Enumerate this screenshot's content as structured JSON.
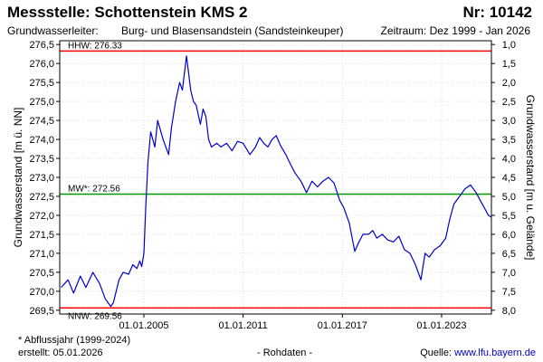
{
  "header": {
    "title": "Messstelle: Schottenstein KMS 2",
    "number": "Nr: 10142",
    "aquifer_label": "Grundwasserleiter:",
    "aquifer": "Burg- und Blasensandstein (Sandsteinkeuper)",
    "period": "Zeitraum: Dez 1999 - Jan 2026"
  },
  "footer": {
    "footnote": "* Abflussjahr (1999-2024)",
    "created": "erstellt:  05.01.2026",
    "data_type": "- Rohdaten -",
    "source_label": "Quelle:",
    "source": "www.lfu.bayern.de"
  },
  "colors": {
    "series": "#0000cc",
    "max_line": "#ff0000",
    "min_line": "#ff0000",
    "mean_line": "#009900",
    "grid": "#dddddd"
  },
  "chart_data": {
    "type": "line",
    "ylabel": "Grundwasserstand [m ü. NN]",
    "ylabel_right": "Grundwasserstand [m u. Gelände]",
    "ylim": [
      269.4,
      276.6
    ],
    "y_ticks": [
      269.5,
      270.0,
      270.5,
      271.0,
      271.5,
      272.0,
      272.5,
      273.0,
      273.5,
      274.0,
      274.5,
      275.0,
      275.5,
      276.0,
      276.5
    ],
    "y_tick_labels": [
      "269,5",
      "270,0",
      "270,5",
      "271,0",
      "271,5",
      "272,0",
      "272,5",
      "273,0",
      "273,5",
      "274,0",
      "274,5",
      "275,0",
      "275,5",
      "276,0",
      "276,5"
    ],
    "y_right_ticks": [
      1.0,
      1.5,
      2.0,
      2.5,
      3.0,
      3.5,
      4.0,
      4.5,
      5.0,
      5.5,
      6.0,
      6.5,
      7.0,
      7.5,
      8.0
    ],
    "y_right_tick_labels": [
      "1,0",
      "1,5",
      "2,0",
      "2,5",
      "3,0",
      "3,5",
      "4,0",
      "4,5",
      "5,0",
      "5,5",
      "6,0",
      "6,5",
      "7,0",
      "7,5",
      "8,0"
    ],
    "right_axis_ground_level": 277.5,
    "xlim": [
      "1999-12-01",
      "2026-01-05"
    ],
    "x_ticks": [
      "2005-01-01",
      "2011-01-01",
      "2017-01-01",
      "2023-01-01"
    ],
    "x_tick_labels": [
      "01.01.2005",
      "01.01.2011",
      "01.01.2017",
      "01.01.2023"
    ],
    "grid": true,
    "reference_lines": [
      {
        "name": "HHW",
        "label": "HHW: 276.33",
        "value": 276.33
      },
      {
        "name": "MW",
        "label": "MW*: 272.56",
        "value": 272.56
      },
      {
        "name": "NNW",
        "label": "NNW: 269.56",
        "value": 269.56
      }
    ],
    "x": [
      "2000-01-01",
      "2000-06-01",
      "2000-10-01",
      "2001-03-01",
      "2001-07-01",
      "2001-12-01",
      "2002-05-01",
      "2002-09-01",
      "2003-01-01",
      "2003-03-01",
      "2003-07-01",
      "2003-10-01",
      "2004-02-01",
      "2004-05-01",
      "2004-08-01",
      "2004-10-01",
      "2004-11-15",
      "2005-01-01",
      "2005-02-15",
      "2005-04-01",
      "2005-06-01",
      "2005-09-01",
      "2005-11-01",
      "2006-03-01",
      "2006-07-01",
      "2006-09-01",
      "2006-12-01",
      "2007-03-01",
      "2007-05-01",
      "2007-08-01",
      "2007-11-01",
      "2008-01-01",
      "2008-03-01",
      "2008-06-01",
      "2008-08-01",
      "2008-10-01",
      "2008-12-01",
      "2009-02-01",
      "2009-06-01",
      "2009-09-01",
      "2010-01-01",
      "2010-05-01",
      "2010-09-01",
      "2011-01-01",
      "2011-06-01",
      "2011-10-01",
      "2012-01-01",
      "2012-04-01",
      "2012-07-01",
      "2012-10-01",
      "2013-01-01",
      "2013-04-01",
      "2013-08-01",
      "2013-12-01",
      "2014-03-01",
      "2014-07-01",
      "2014-11-01",
      "2015-03-01",
      "2015-07-01",
      "2015-11-01",
      "2016-03-01",
      "2016-07-01",
      "2016-11-01",
      "2017-02-01",
      "2017-06-01",
      "2017-10-01",
      "2018-01-01",
      "2018-04-01",
      "2018-08-01",
      "2018-11-01",
      "2019-02-01",
      "2019-06-01",
      "2019-10-01",
      "2020-02-01",
      "2020-06-01",
      "2020-10-01",
      "2021-02-01",
      "2021-06-01",
      "2021-10-01",
      "2022-01-01",
      "2022-04-01",
      "2022-08-01",
      "2022-12-01",
      "2023-04-01",
      "2023-07-01",
      "2023-10-01",
      "2024-02-01",
      "2024-06-01",
      "2024-10-01",
      "2025-02-01",
      "2025-05-01",
      "2025-08-01",
      "2025-11-01",
      "2026-01-01"
    ],
    "values": [
      270.1,
      270.3,
      269.95,
      270.4,
      270.1,
      270.5,
      270.2,
      269.8,
      269.6,
      269.7,
      270.3,
      270.5,
      270.45,
      270.7,
      270.6,
      270.8,
      270.65,
      271.0,
      272.3,
      273.4,
      274.2,
      273.8,
      274.5,
      274.0,
      273.6,
      274.3,
      275.0,
      275.5,
      275.3,
      276.2,
      275.3,
      275.0,
      274.9,
      274.4,
      274.8,
      274.6,
      274.0,
      273.8,
      273.9,
      273.8,
      273.9,
      273.7,
      273.95,
      273.9,
      273.6,
      273.8,
      274.05,
      273.9,
      273.8,
      274.0,
      274.1,
      273.85,
      273.6,
      273.3,
      273.1,
      272.9,
      272.6,
      272.9,
      272.75,
      272.9,
      273.0,
      272.85,
      272.4,
      272.2,
      271.8,
      271.05,
      271.3,
      271.5,
      271.5,
      271.6,
      271.4,
      271.5,
      271.35,
      271.3,
      271.45,
      271.1,
      271.0,
      270.7,
      270.3,
      271.0,
      270.9,
      271.1,
      271.2,
      271.4,
      271.9,
      272.3,
      272.5,
      272.7,
      272.8,
      272.6,
      272.4,
      272.2,
      272.0,
      271.95
    ]
  }
}
